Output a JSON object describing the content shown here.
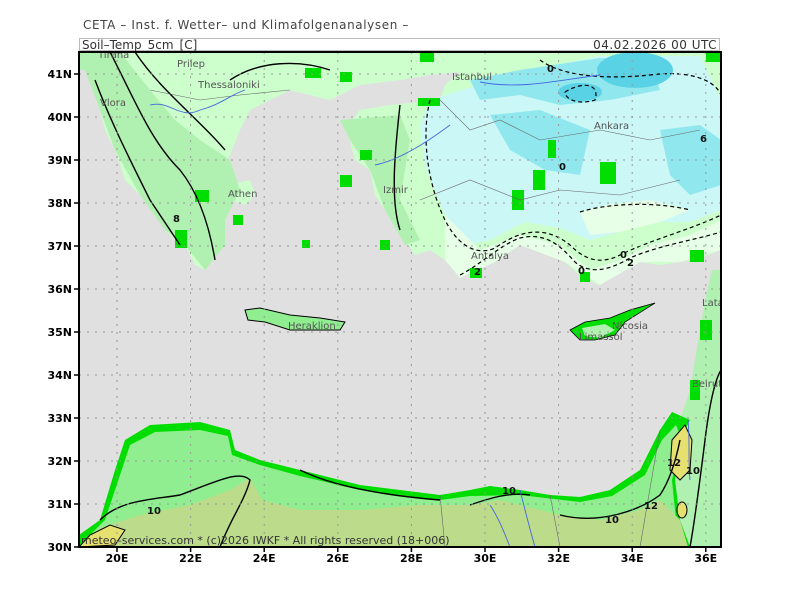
{
  "header": {
    "institute": "CETA – Inst. f. Wetter– und Klimafolgenanalysen –",
    "field": "Soil–Temp_5cm_[C]",
    "valid_time": "04.02.2026 00 UTC"
  },
  "footer": "meteo–services.com * (c)2026 IWKF * All rights reserved (18+006)",
  "axes": {
    "lat_labels": [
      "41N",
      "40N",
      "39N",
      "38N",
      "37N",
      "36N",
      "35N",
      "34N",
      "33N",
      "32N",
      "31N",
      "30N"
    ],
    "lon_labels": [
      "20E",
      "22E",
      "24E",
      "26E",
      "28E",
      "30E",
      "32E",
      "34E",
      "36E"
    ]
  },
  "cities": {
    "tirana": "Tirana",
    "prilep": "Prilep",
    "thessaloniki": "Thessaloniki",
    "vlora": "Vlora",
    "athen": "Athen",
    "istanbul": "Istanbul",
    "izmir": "Izmir",
    "ankara": "Ankara",
    "antalya": "Antalya",
    "heraklion": "Heraklion",
    "nicosia": "Nicosia",
    "limassol": "Limassol",
    "latakia": "Latakia",
    "beirut": "Beirut"
  },
  "contour_labels": [
    "0",
    "0",
    "0",
    "0",
    "2",
    "2",
    "6",
    "8",
    "10",
    "10",
    "10",
    "10",
    "12",
    "12"
  ],
  "colors": {
    "sea": "#e0e0e0",
    "land_light": "#ccffcc",
    "land_mid": "#b0f0b0",
    "land_green": "#90ee90",
    "bright_green": "#00dd00",
    "cold_light": "#ccf7f7",
    "cold_mid": "#90e8ee",
    "cold_dark": "#5ad2e6",
    "olive": "#bcdc8c",
    "yellow": "#e6e070"
  }
}
